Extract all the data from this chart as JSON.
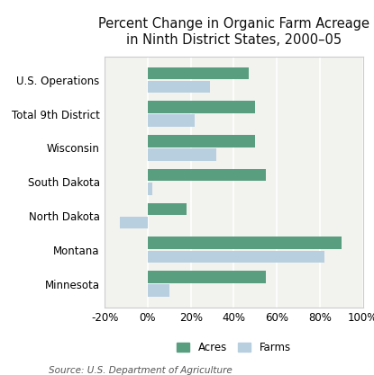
{
  "title": "Percent Change in Organic Farm Acreage\nin Ninth District States, 2000–05",
  "categories": [
    "Minnesota",
    "Montana",
    "North Dakota",
    "South Dakota",
    "Wisconsin",
    "Total 9th District",
    "U.S. Operations"
  ],
  "acres": [
    55,
    90,
    18,
    55,
    50,
    50,
    47
  ],
  "farms": [
    10,
    82,
    -13,
    2,
    32,
    22,
    29
  ],
  "acres_color": "#5a9e80",
  "farms_color": "#b8cfe0",
  "xlim_min": -20,
  "xlim_max": 100,
  "xticks": [
    -20,
    0,
    20,
    40,
    60,
    80,
    100
  ],
  "xticklabels": [
    "-20%",
    "0%",
    "20%",
    "40%",
    "60%",
    "80%",
    "100%"
  ],
  "bar_height": 0.36,
  "bar_gap": 0.04,
  "bg_color": "#ffffff",
  "plot_bg_color": "#f2f2ee",
  "grid_color": "#ffffff",
  "source_text": "Source: U.S. Department of Agriculture",
  "legend_acres": "Acres",
  "legend_farms": "Farms",
  "title_fontsize": 10.5,
  "axis_fontsize": 8.5,
  "label_fontsize": 8.5,
  "source_fontsize": 7.5
}
